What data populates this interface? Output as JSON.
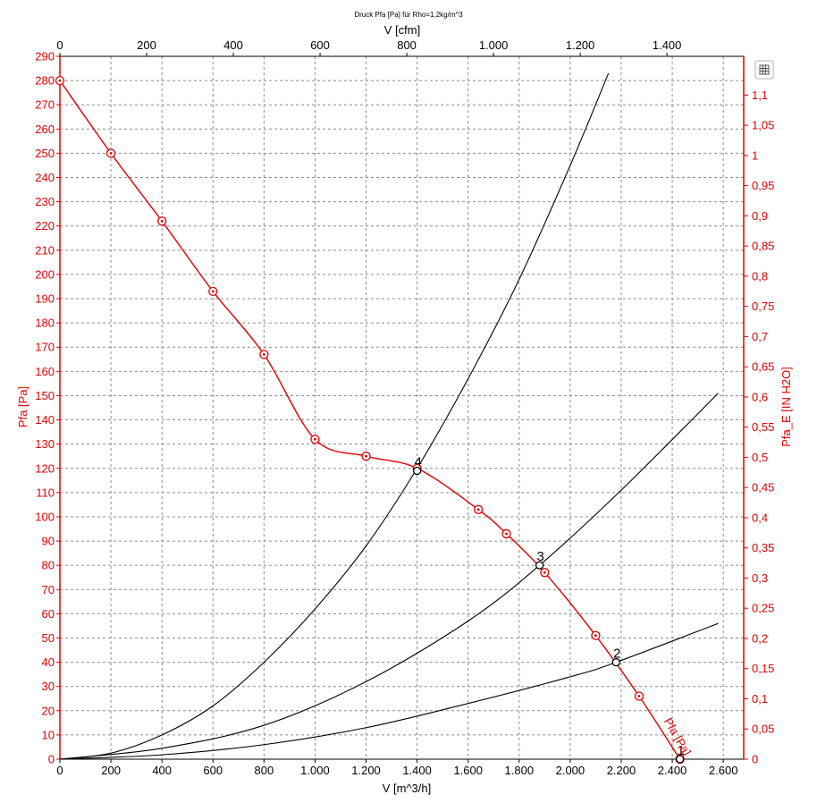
{
  "chart_data": {
    "type": "line",
    "title": "Druck Pfa [Pa] für Rho=1,2kg/m^3",
    "xlabel": "V [m^3/h]",
    "x2label": "V [cfm]",
    "ylabel": "Pfa [Pa]",
    "y2label": "Pfa_E [IN H2O]",
    "xlim": [
      0,
      2680
    ],
    "ylim": [
      0,
      290
    ],
    "x2lim": [
      0,
      1577
    ],
    "y2lim": [
      0,
      1.1642
    ],
    "grid": true,
    "x_ticks": [
      {
        "value": 0,
        "label": "0"
      },
      {
        "value": 200,
        "label": "200"
      },
      {
        "value": 400,
        "label": "400"
      },
      {
        "value": 600,
        "label": "600"
      },
      {
        "value": 800,
        "label": "800"
      },
      {
        "value": 1000,
        "label": "1.000"
      },
      {
        "value": 1200,
        "label": "1.200"
      },
      {
        "value": 1400,
        "label": "1.400"
      },
      {
        "value": 1600,
        "label": "1.600"
      },
      {
        "value": 1800,
        "label": "1.800"
      },
      {
        "value": 2000,
        "label": "2.000"
      },
      {
        "value": 2200,
        "label": "2.200"
      },
      {
        "value": 2400,
        "label": "2.400"
      },
      {
        "value": 2600,
        "label": "2.600"
      }
    ],
    "x2_ticks": [
      {
        "value": 0,
        "label": "0"
      },
      {
        "value": 200,
        "label": "200"
      },
      {
        "value": 400,
        "label": "400"
      },
      {
        "value": 600,
        "label": "600"
      },
      {
        "value": 800,
        "label": "800"
      },
      {
        "value": 1000,
        "label": "1.000"
      },
      {
        "value": 1200,
        "label": "1.200"
      },
      {
        "value": 1400,
        "label": "1.400"
      }
    ],
    "y_ticks": [
      {
        "value": 0,
        "label": "0"
      },
      {
        "value": 10,
        "label": "10"
      },
      {
        "value": 20,
        "label": "20"
      },
      {
        "value": 30,
        "label": "30"
      },
      {
        "value": 40,
        "label": "40"
      },
      {
        "value": 50,
        "label": "50"
      },
      {
        "value": 60,
        "label": "60"
      },
      {
        "value": 70,
        "label": "70"
      },
      {
        "value": 80,
        "label": "80"
      },
      {
        "value": 90,
        "label": "90"
      },
      {
        "value": 100,
        "label": "100"
      },
      {
        "value": 110,
        "label": "110"
      },
      {
        "value": 120,
        "label": "120"
      },
      {
        "value": 130,
        "label": "130"
      },
      {
        "value": 140,
        "label": "140"
      },
      {
        "value": 150,
        "label": "150"
      },
      {
        "value": 160,
        "label": "160"
      },
      {
        "value": 170,
        "label": "170"
      },
      {
        "value": 180,
        "label": "180"
      },
      {
        "value": 190,
        "label": "190"
      },
      {
        "value": 200,
        "label": "200"
      },
      {
        "value": 210,
        "label": "210"
      },
      {
        "value": 220,
        "label": "220"
      },
      {
        "value": 230,
        "label": "230"
      },
      {
        "value": 240,
        "label": "240"
      },
      {
        "value": 250,
        "label": "250"
      },
      {
        "value": 260,
        "label": "260"
      },
      {
        "value": 270,
        "label": "270"
      },
      {
        "value": 280,
        "label": "280"
      },
      {
        "value": 290,
        "label": "290"
      }
    ],
    "y2_ticks": [
      {
        "value": 0,
        "label": "0"
      },
      {
        "value": 0.05,
        "label": "0,05"
      },
      {
        "value": 0.1,
        "label": "0,1"
      },
      {
        "value": 0.15,
        "label": "0,15"
      },
      {
        "value": 0.2,
        "label": "0,2"
      },
      {
        "value": 0.25,
        "label": "0,25"
      },
      {
        "value": 0.3,
        "label": "0,3"
      },
      {
        "value": 0.35,
        "label": "0,35"
      },
      {
        "value": 0.4,
        "label": "0,4"
      },
      {
        "value": 0.45,
        "label": "0,45"
      },
      {
        "value": 0.5,
        "label": "0,5"
      },
      {
        "value": 0.55,
        "label": "0,55"
      },
      {
        "value": 0.6,
        "label": "0,6"
      },
      {
        "value": 0.65,
        "label": "0,65"
      },
      {
        "value": 0.7,
        "label": "0,7"
      },
      {
        "value": 0.75,
        "label": "0,75"
      },
      {
        "value": 0.8,
        "label": "0,8"
      },
      {
        "value": 0.85,
        "label": "0,85"
      },
      {
        "value": 0.9,
        "label": "0,9"
      },
      {
        "value": 0.95,
        "label": "0,95"
      },
      {
        "value": 1,
        "label": "1"
      },
      {
        "value": 1.05,
        "label": "1,05"
      },
      {
        "value": 1.1,
        "label": "1,1"
      }
    ],
    "series": [
      {
        "name": "Pfa [Pa]",
        "color": "#e00000",
        "markers": "circle-dot",
        "x": [
          0,
          200,
          400,
          600,
          800,
          1000,
          1200,
          1400,
          1640,
          1750,
          1900,
          2100,
          2270,
          2430
        ],
        "y": [
          280,
          250,
          222,
          193,
          167,
          132,
          125,
          120,
          103,
          93,
          77,
          51,
          26,
          0
        ]
      },
      {
        "name": "",
        "color": "#000000",
        "x": [
          0,
          200,
          400,
          600,
          800,
          1000,
          1200,
          1400,
          1600,
          1800,
          2000,
          2150
        ],
        "y": [
          0,
          2.5,
          10,
          22,
          40,
          62,
          88,
          120,
          157,
          198,
          245,
          283
        ]
      },
      {
        "name": "",
        "color": "#000000",
        "x": [
          0,
          400,
          800,
          1200,
          1600,
          1880,
          2200,
          2580
        ],
        "y": [
          0,
          4.5,
          14,
          32,
          57,
          80,
          111,
          151
        ]
      },
      {
        "name": "",
        "color": "#000000",
        "x": [
          0,
          400,
          800,
          1200,
          1600,
          2000,
          2180,
          2580
        ],
        "y": [
          0,
          1.8,
          6,
          13,
          23,
          34,
          40,
          56
        ]
      }
    ],
    "operating_points": [
      {
        "label": "1",
        "x": 2430,
        "y": 0
      },
      {
        "label": "2",
        "x": 2180,
        "y": 40
      },
      {
        "label": "3",
        "x": 1880,
        "y": 80
      },
      {
        "label": "4",
        "x": 1400,
        "y": 119
      }
    ],
    "colors": {
      "pressure": "#e00000",
      "system_curves": "#000000",
      "grid": "#8c8c8c"
    },
    "toolbar": {
      "export_icon": "table-export-icon"
    }
  }
}
